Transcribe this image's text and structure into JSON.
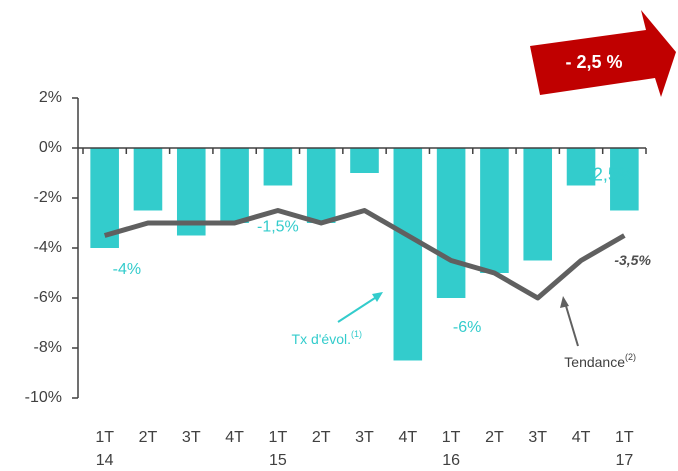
{
  "chart_data": {
    "type": "bar_line",
    "categories": [
      [
        "1T",
        "14"
      ],
      [
        "2T"
      ],
      [
        "3T"
      ],
      [
        "4T"
      ],
      [
        "1T",
        "15"
      ],
      [
        "2T"
      ],
      [
        "3T"
      ],
      [
        "4T"
      ],
      [
        "1T",
        "16"
      ],
      [
        "2T"
      ],
      [
        "3T"
      ],
      [
        "4T"
      ],
      [
        "1T",
        "17"
      ]
    ],
    "series": [
      {
        "name": "Tx d'évol.",
        "name_sup": "(1)",
        "type": "bar",
        "color": "#33cccc",
        "values": [
          -4,
          -2.5,
          -3.5,
          -3,
          -1.5,
          -3,
          -1,
          -8.5,
          -6,
          -5,
          -4.5,
          -1.5,
          -2.5
        ],
        "value_labels": [
          "-4%",
          null,
          null,
          null,
          "-1,5%",
          null,
          null,
          null,
          "-6%",
          null,
          null,
          null,
          "-2,5%"
        ]
      },
      {
        "name": "Tendance",
        "name_sup": "(2)",
        "type": "line",
        "color": "#606060",
        "values": [
          -3.5,
          -3,
          -3,
          -3,
          -2.5,
          -3,
          -2.5,
          -3.5,
          -4.5,
          -5,
          -6,
          -4.5,
          -3.5
        ],
        "value_labels": [
          null,
          null,
          null,
          null,
          null,
          null,
          null,
          null,
          null,
          null,
          null,
          null,
          "-3,5%"
        ]
      }
    ],
    "ylim": [
      -10,
      2
    ],
    "yticks": [
      {
        "value": -10,
        "label": "-10%"
      },
      {
        "value": -8,
        "label": "-8%"
      },
      {
        "value": -6,
        "label": "-6%"
      },
      {
        "value": -4,
        "label": "-4%"
      },
      {
        "value": -2,
        "label": "-2%"
      },
      {
        "value": 0,
        "label": "0%"
      },
      {
        "value": 2,
        "label": "2%"
      }
    ],
    "callout": {
      "text": "- 2,5 %",
      "color": "#c00000"
    }
  }
}
